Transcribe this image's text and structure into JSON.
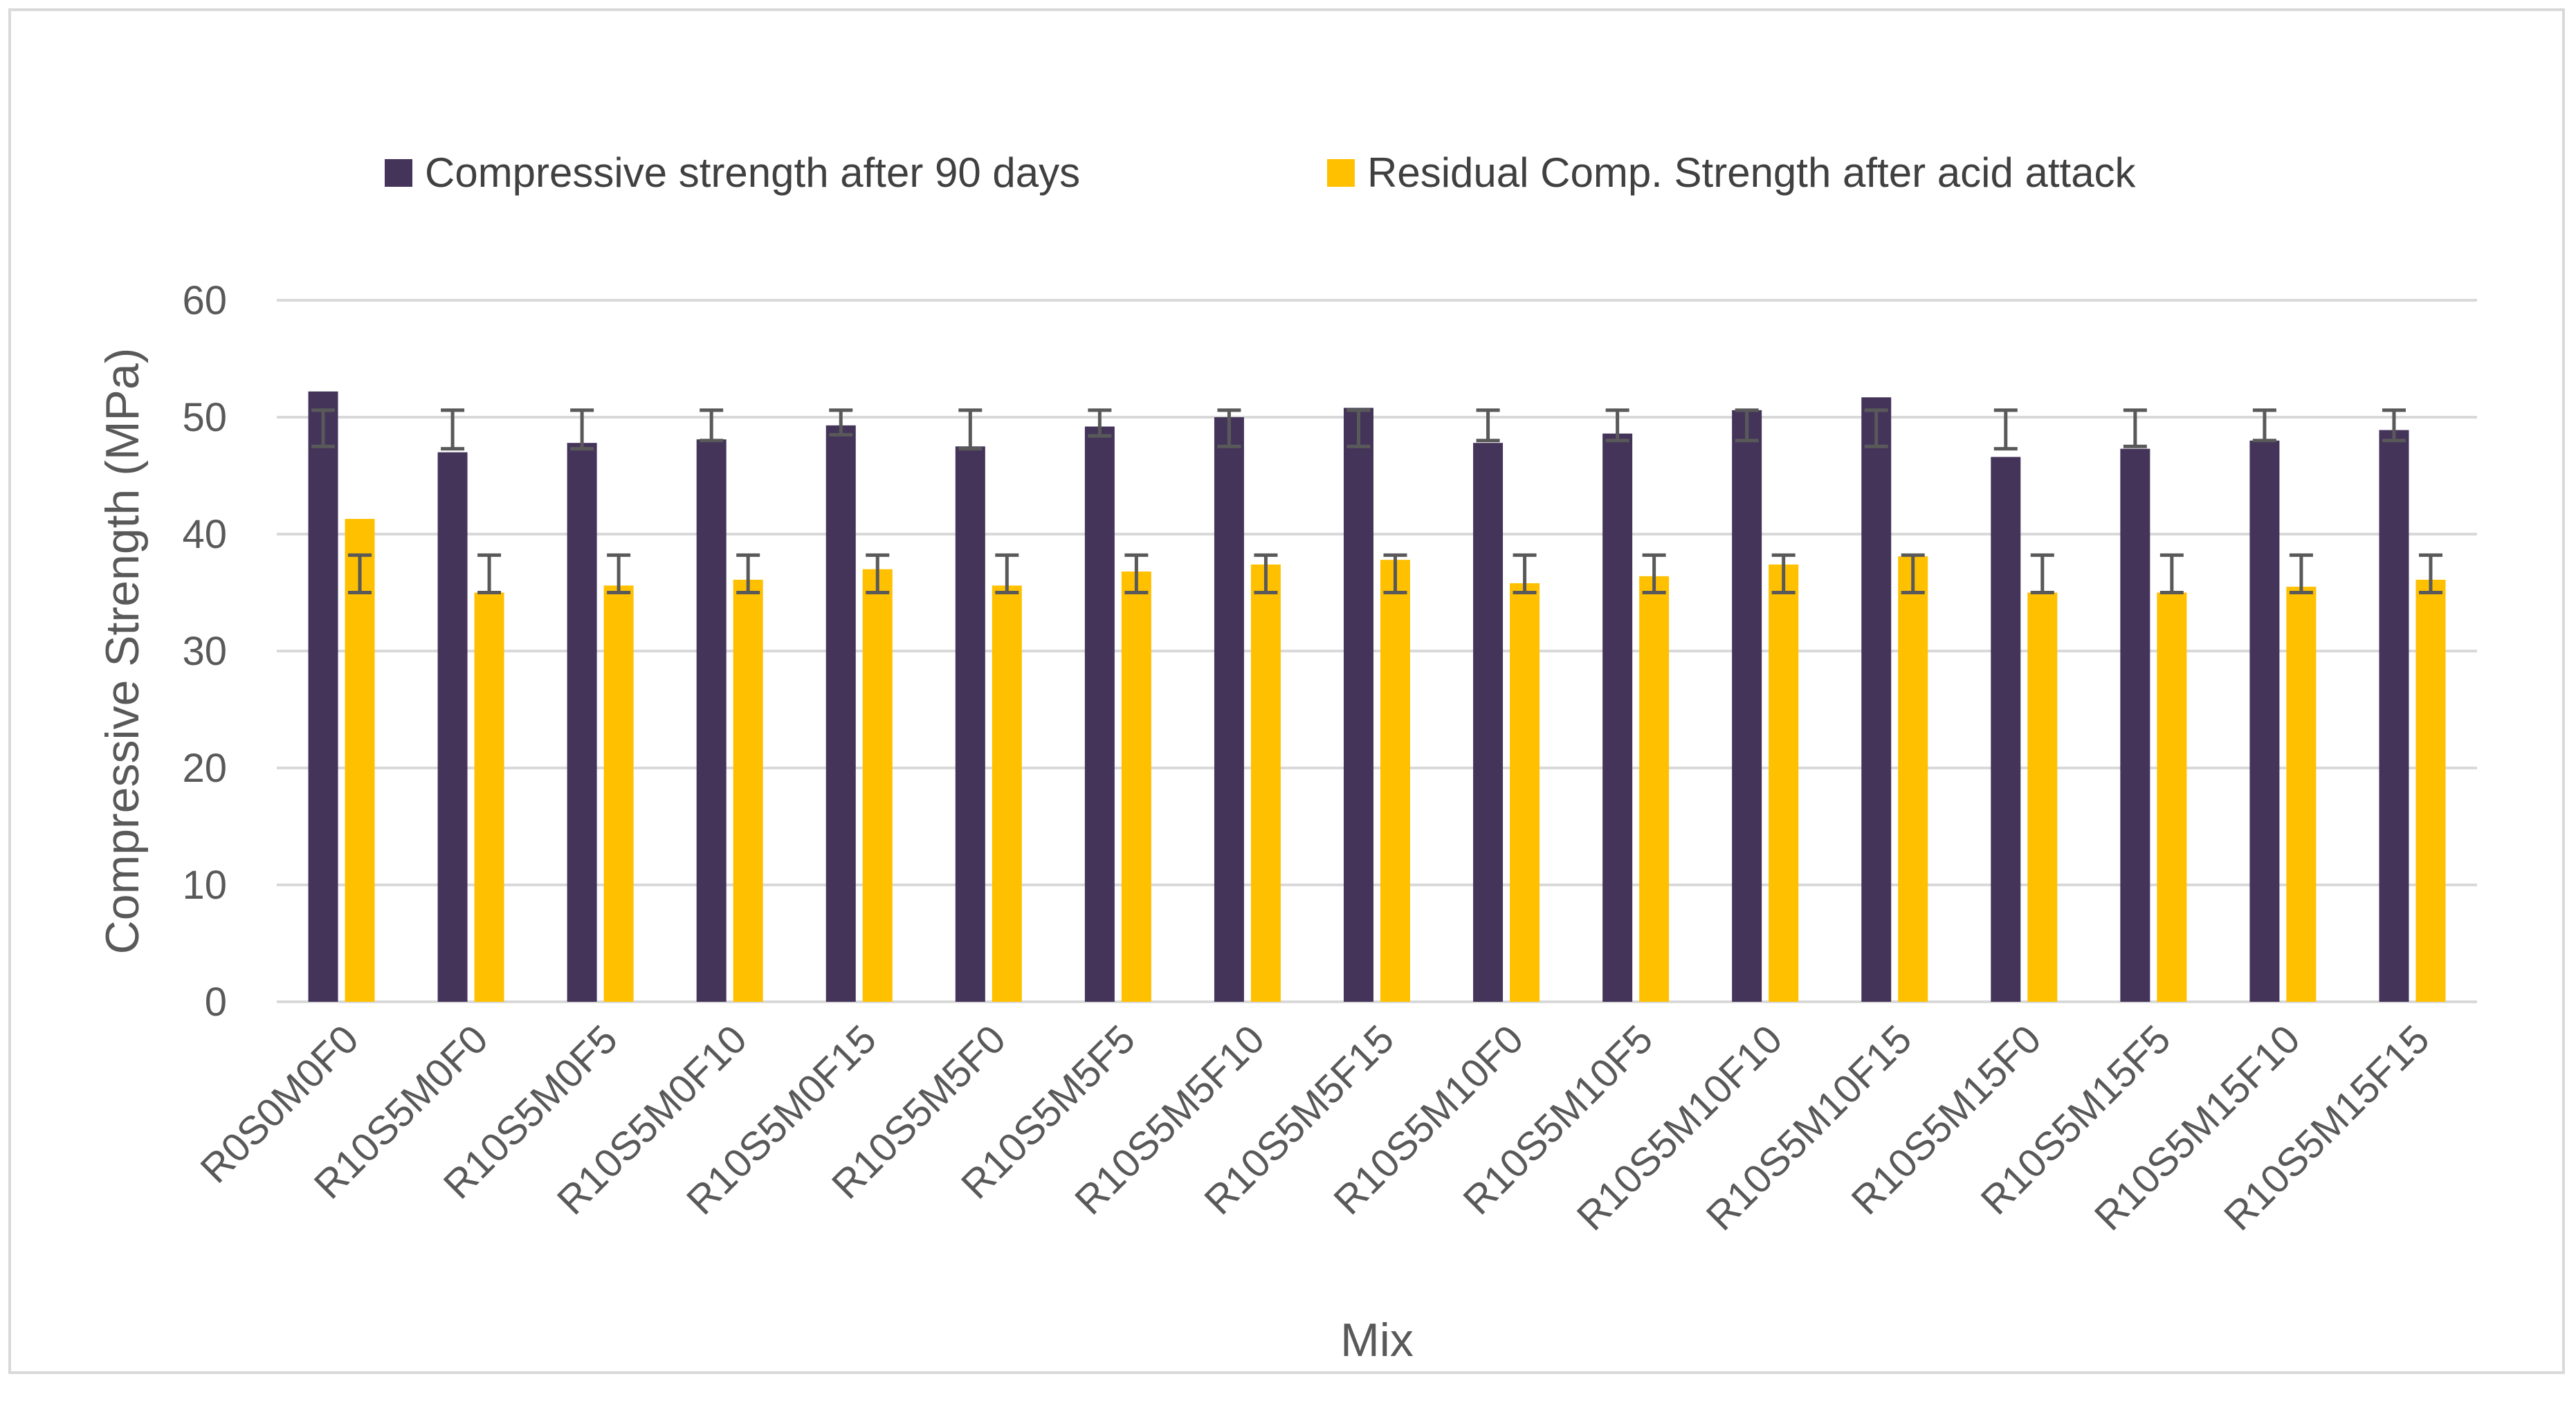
{
  "chart_data": {
    "type": "bar",
    "title": "",
    "xlabel": "Mix",
    "ylabel": "Compressive Strength (MPa)",
    "ylim": [
      0,
      60
    ],
    "yticks": [
      0,
      10,
      20,
      30,
      40,
      50,
      60
    ],
    "grid": true,
    "legend_position": "top",
    "categories": [
      "R0S0M0F0",
      "R10S5M0F0",
      "R10S5M0F5",
      "R10S5M0F10",
      "R10S5M0F15",
      "R10S5M5F0",
      "R10S5M5F5",
      "R10S5M5F10",
      "R10S5M5F15",
      "R10S5M10F0",
      "R10S5M10F5",
      "R10S5M10F10",
      "R10S5M10F15",
      "R10S5M15F0",
      "R10S5M15F5",
      "R10S5M15F10",
      "R10S5M15F15"
    ],
    "series": [
      {
        "name": "Compressive strength after 90 days",
        "color": "#44345a",
        "values": [
          52.2,
          47.0,
          47.8,
          48.1,
          49.3,
          47.5,
          49.2,
          50.0,
          50.8,
          47.8,
          48.6,
          50.6,
          51.7,
          46.6,
          47.3,
          48.0,
          48.9
        ],
        "error_bars": [
          [
            47.5,
            50.6
          ],
          [
            47.3,
            50.6
          ],
          [
            47.3,
            50.6
          ],
          [
            48.0,
            50.6
          ],
          [
            48.5,
            50.6
          ],
          [
            47.3,
            50.6
          ],
          [
            48.4,
            50.6
          ],
          [
            47.5,
            50.6
          ],
          [
            47.5,
            50.6
          ],
          [
            48.0,
            50.6
          ],
          [
            48.0,
            50.6
          ],
          [
            48.0,
            50.6
          ],
          [
            47.5,
            50.6
          ],
          [
            47.3,
            50.6
          ],
          [
            47.5,
            50.6
          ],
          [
            48.0,
            50.6
          ],
          [
            48.0,
            50.6
          ]
        ]
      },
      {
        "name": "Residual Comp. Strength after acid attack",
        "color": "#ffc000",
        "values": [
          41.3,
          35.0,
          35.6,
          36.1,
          37.0,
          35.6,
          36.8,
          37.4,
          37.8,
          35.8,
          36.4,
          37.4,
          38.1,
          35.0,
          35.0,
          35.5,
          36.1
        ],
        "error_bars": [
          [
            35.0,
            38.2
          ],
          [
            35.0,
            38.2
          ],
          [
            35.0,
            38.2
          ],
          [
            35.0,
            38.2
          ],
          [
            35.0,
            38.2
          ],
          [
            35.0,
            38.2
          ],
          [
            35.0,
            38.2
          ],
          [
            35.0,
            38.2
          ],
          [
            35.0,
            38.2
          ],
          [
            35.0,
            38.2
          ],
          [
            35.0,
            38.2
          ],
          [
            35.0,
            38.2
          ],
          [
            35.0,
            38.2
          ],
          [
            35.0,
            38.2
          ],
          [
            35.0,
            38.2
          ],
          [
            35.0,
            38.2
          ],
          [
            35.0,
            38.2
          ]
        ]
      }
    ],
    "gridline_color": "#d9d9d9",
    "error_bar_color": "#595959",
    "text_color": "#595959"
  }
}
